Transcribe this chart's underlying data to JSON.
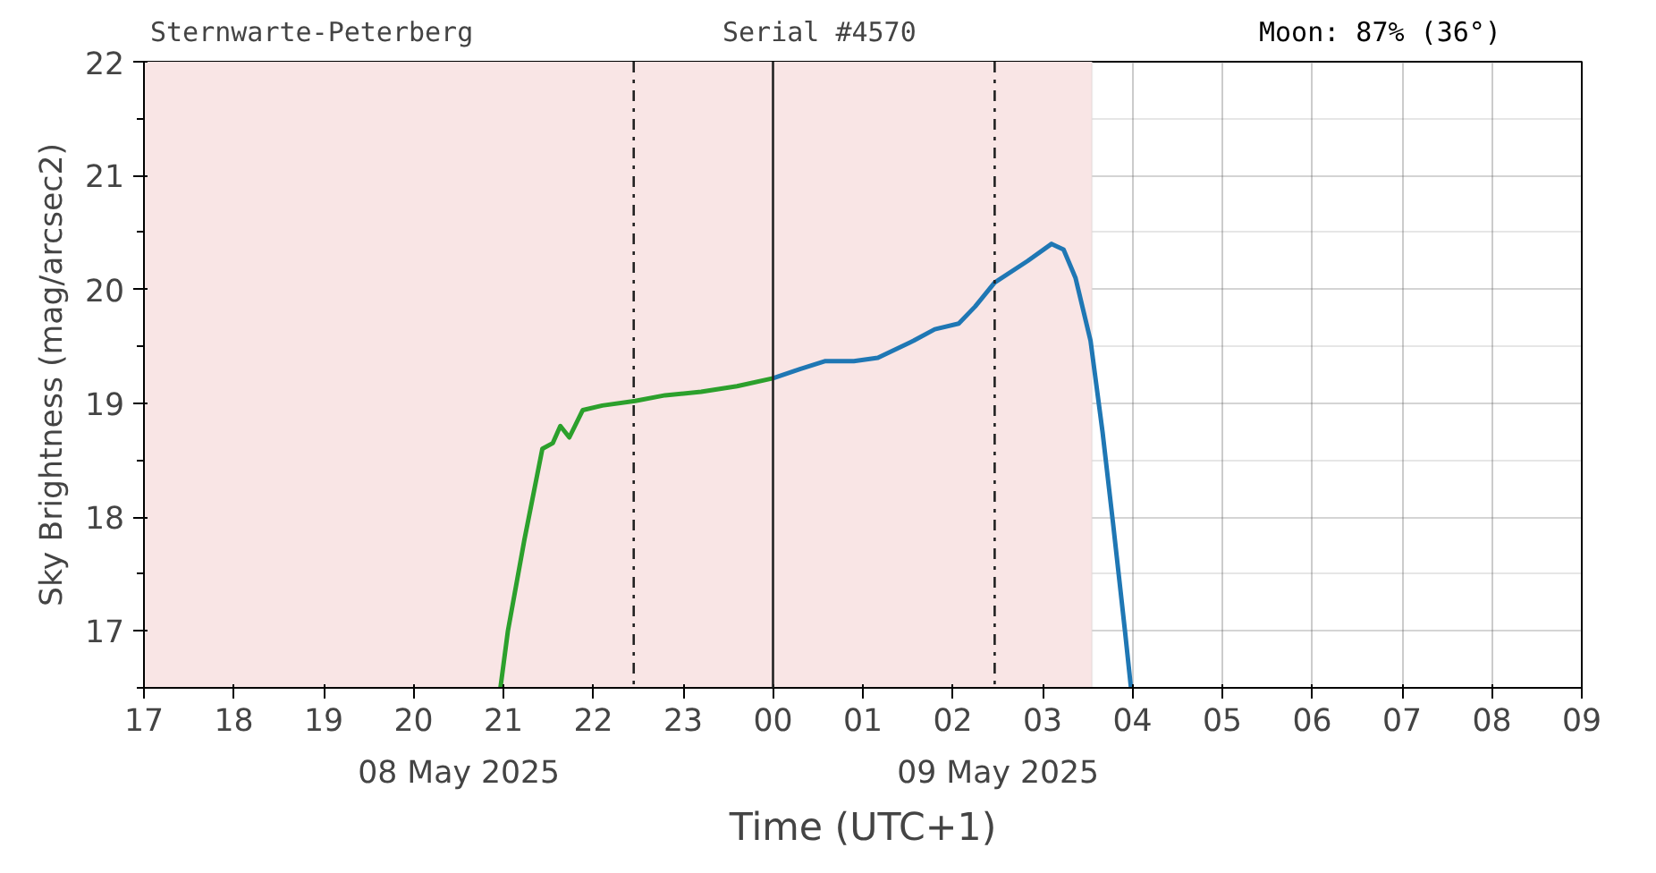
{
  "chart_data": {
    "type": "line",
    "xlabel": "Time (UTC+1)",
    "ylabel": "Sky Brightness (mag/arcsec2)",
    "annotations": [
      "Sternwarte-Peterberg",
      "Serial #4570",
      "Moon: 87% (36°)",
      "08 May 2025",
      "09 May 2025"
    ],
    "series": [
      {
        "color": "#2ca02c",
        "x": [
          "2025-05-08T20:58",
          "2025-05-08T21:03",
          "2025-05-08T21:14",
          "2025-05-08T21:26",
          "2025-05-08T21:33",
          "2025-05-08T21:38",
          "2025-05-08T21:44",
          "2025-05-08T21:53",
          "2025-05-08T22:06",
          "2025-05-08T22:28",
          "2025-05-08T22:48",
          "2025-05-08T23:12",
          "2025-05-08T23:36",
          "2025-05-09T00:00"
        ],
        "values": [
          16.5,
          17.0,
          17.8,
          18.6,
          18.65,
          18.8,
          18.7,
          18.94,
          18.98,
          19.02,
          19.07,
          19.1,
          19.15,
          19.22
        ]
      },
      {
        "color": "#1f77b4",
        "x": [
          "2025-05-09T00:00",
          "2025-05-09T00:18",
          "2025-05-09T00:35",
          "2025-05-09T00:54",
          "2025-05-09T01:10",
          "2025-05-09T01:34",
          "2025-05-09T01:48",
          "2025-05-09T02:04",
          "2025-05-09T02:15",
          "2025-05-09T02:28",
          "2025-05-09T02:50",
          "2025-05-09T03:06",
          "2025-05-09T03:14",
          "2025-05-09T03:22",
          "2025-05-09T03:32",
          "2025-05-09T03:40",
          "2025-05-09T03:47",
          "2025-05-09T03:55",
          "2025-05-09T03:59"
        ],
        "values": [
          19.22,
          19.3,
          19.37,
          19.37,
          19.4,
          19.55,
          19.65,
          19.7,
          19.85,
          20.06,
          20.25,
          20.4,
          20.35,
          20.1,
          19.55,
          18.75,
          17.95,
          17.0,
          16.5
        ]
      }
    ],
    "xlim": [
      "2025-05-08T17:00",
      "2025-05-09T09:00"
    ],
    "xticks": [
      {
        "value": "2025-05-08T17:00",
        "label": "17"
      },
      {
        "value": "2025-05-08T18:00",
        "label": "18"
      },
      {
        "value": "2025-05-08T19:00",
        "label": "19"
      },
      {
        "value": "2025-05-08T20:00",
        "label": "20"
      },
      {
        "value": "2025-05-08T21:00",
        "label": "21"
      },
      {
        "value": "2025-05-08T22:00",
        "label": "22"
      },
      {
        "value": "2025-05-08T23:00",
        "label": "23"
      },
      {
        "value": "2025-05-09T00:00",
        "label": "00"
      },
      {
        "value": "2025-05-09T01:00",
        "label": "01"
      },
      {
        "value": "2025-05-09T02:00",
        "label": "02"
      },
      {
        "value": "2025-05-09T03:00",
        "label": "03"
      },
      {
        "value": "2025-05-09T04:00",
        "label": "04"
      },
      {
        "value": "2025-05-09T05:00",
        "label": "05"
      },
      {
        "value": "2025-05-09T06:00",
        "label": "06"
      },
      {
        "value": "2025-05-09T07:00",
        "label": "07"
      },
      {
        "value": "2025-05-09T08:00",
        "label": "08"
      },
      {
        "value": "2025-05-09T09:00",
        "label": "09"
      }
    ],
    "ylim": [
      16.5,
      22
    ],
    "yticks": [
      17,
      18,
      19,
      20,
      21,
      22
    ],
    "ref_lines": [
      {
        "axis": "x",
        "value": "2025-05-08T22:27",
        "color": "#222222",
        "line_style": "dashdot"
      },
      {
        "axis": "x",
        "value": "2025-05-09T00:00",
        "color": "#222222",
        "line_style": "solid"
      },
      {
        "axis": "x",
        "value": "2025-05-09T02:28",
        "color": "#222222",
        "line_style": "dashdot"
      }
    ],
    "bands": [
      {
        "axis": "x",
        "from": "2025-05-08T17:00",
        "to": "2025-05-09T03:33",
        "color": "#f9e5e5"
      }
    ],
    "grid": true,
    "line_style": "solid",
    "marker": "none"
  }
}
